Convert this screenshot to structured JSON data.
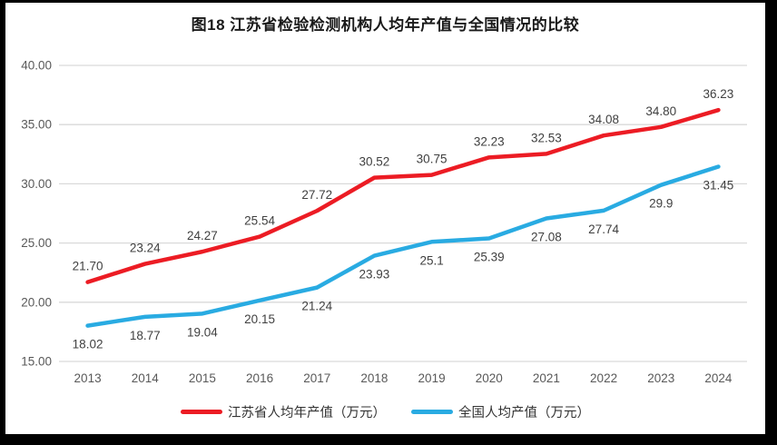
{
  "frame": {
    "background_color": "#000000",
    "chart_background_color": "#ffffff"
  },
  "title": {
    "text": "图18  江苏省检验检测机构人均年产值与全国情况的比较"
  },
  "chart_data": {
    "type": "line",
    "categories": [
      "2013",
      "2014",
      "2015",
      "2016",
      "2017",
      "2018",
      "2019",
      "2020",
      "2021",
      "2022",
      "2023",
      "2024"
    ],
    "series": [
      {
        "name": "江苏省人均年产值（万元）",
        "color": "#ec1c24",
        "values": [
          21.7,
          23.24,
          24.27,
          25.54,
          27.72,
          30.52,
          30.75,
          32.23,
          32.53,
          34.08,
          34.8,
          36.23
        ],
        "labels": [
          "21.70",
          "23.24",
          "24.27",
          "25.54",
          "27.72",
          "30.52",
          "30.75",
          "32.23",
          "32.53",
          "34.08",
          "34.80",
          "36.23"
        ],
        "label_position": "above"
      },
      {
        "name": "全国人均产值（万元）",
        "color": "#29abe2",
        "values": [
          18.02,
          18.77,
          19.04,
          20.15,
          21.24,
          23.93,
          25.1,
          25.39,
          27.08,
          27.74,
          29.9,
          31.45
        ],
        "labels": [
          "18.02",
          "18.77",
          "19.04",
          "20.15",
          "21.24",
          "23.93",
          "25.1",
          "25.39",
          "27.08",
          "27.74",
          "29.9",
          "31.45"
        ],
        "label_position": "below"
      }
    ],
    "ylim": [
      15,
      40
    ],
    "yticks": [
      "40.00",
      "35.00",
      "30.00",
      "25.00",
      "20.00",
      "15.00"
    ],
    "grid": "horizontal-only",
    "legend_position": "bottom",
    "gridline_color": "#d9d9d9",
    "axis_label_color": "#595959",
    "data_label_color": "#404040"
  }
}
